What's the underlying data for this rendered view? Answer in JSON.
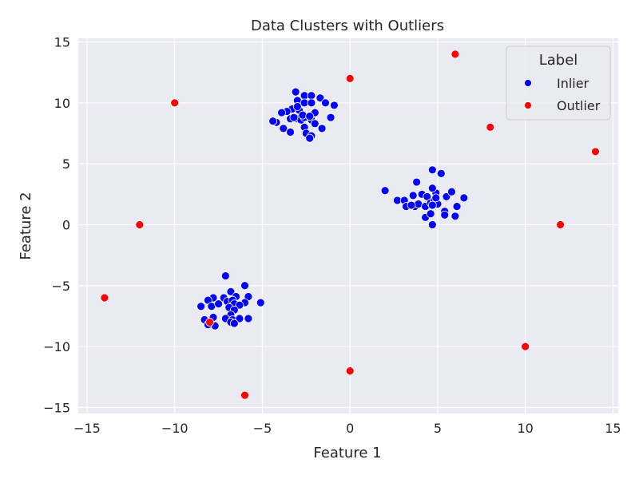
{
  "chart_data": {
    "type": "scatter",
    "title": "Data Clusters with Outliers",
    "xlabel": "Feature 1",
    "ylabel": "Feature 2",
    "xlim": [
      -15.5,
      15.3
    ],
    "ylim": [
      -15.5,
      15.3
    ],
    "x_ticks": [
      -15,
      -10,
      -5,
      0,
      5,
      10,
      15
    ],
    "y_ticks": [
      -15,
      -10,
      -5,
      0,
      5,
      10,
      15
    ],
    "grid": true,
    "legend": {
      "title": "Label",
      "placement": "top-right"
    },
    "series": [
      {
        "name": "Inlier",
        "color": "#0000ff",
        "points": [
          [
            -3.1,
            10.9
          ],
          [
            -2.6,
            10.6
          ],
          [
            -2.2,
            10.6
          ],
          [
            -1.7,
            10.4
          ],
          [
            -1.4,
            10.0
          ],
          [
            -0.9,
            9.8
          ],
          [
            -3.0,
            10.2
          ],
          [
            -2.6,
            10.0
          ],
          [
            -2.2,
            10.0
          ],
          [
            -3.3,
            9.5
          ],
          [
            -3.6,
            9.3
          ],
          [
            -3.9,
            9.2
          ],
          [
            -2.9,
            9.4
          ],
          [
            -2.0,
            9.2
          ],
          [
            -1.1,
            8.8
          ],
          [
            -4.2,
            8.4
          ],
          [
            -4.4,
            8.5
          ],
          [
            -3.4,
            8.7
          ],
          [
            -3.0,
            8.7
          ],
          [
            -2.8,
            8.6
          ],
          [
            -2.6,
            8.8
          ],
          [
            -2.2,
            8.6
          ],
          [
            -2.0,
            8.3
          ],
          [
            -3.8,
            7.9
          ],
          [
            -3.4,
            7.6
          ],
          [
            -2.6,
            8.0
          ],
          [
            -2.5,
            7.5
          ],
          [
            -2.2,
            7.3
          ],
          [
            -2.3,
            7.1
          ],
          [
            -1.6,
            7.9
          ],
          [
            -3.0,
            9.7
          ],
          [
            -2.7,
            9.0
          ],
          [
            -3.2,
            8.8
          ],
          [
            -2.3,
            8.9
          ],
          [
            2.0,
            2.8
          ],
          [
            2.7,
            2.0
          ],
          [
            3.1,
            2.0
          ],
          [
            3.2,
            1.5
          ],
          [
            3.6,
            2.4
          ],
          [
            3.8,
            3.5
          ],
          [
            4.1,
            2.5
          ],
          [
            4.4,
            2.3
          ],
          [
            4.7,
            4.5
          ],
          [
            5.2,
            4.2
          ],
          [
            5.5,
            2.3
          ],
          [
            5.8,
            2.7
          ],
          [
            6.5,
            2.2
          ],
          [
            3.7,
            1.5
          ],
          [
            3.9,
            1.7
          ],
          [
            4.3,
            1.5
          ],
          [
            4.6,
            1.8
          ],
          [
            4.8,
            2.0
          ],
          [
            5.0,
            1.7
          ],
          [
            5.4,
            1.1
          ],
          [
            6.1,
            1.5
          ],
          [
            4.3,
            0.6
          ],
          [
            4.7,
            0.0
          ],
          [
            5.4,
            0.8
          ],
          [
            6.0,
            0.7
          ],
          [
            4.9,
            2.6
          ],
          [
            4.7,
            3.0
          ],
          [
            3.5,
            1.6
          ],
          [
            4.9,
            2.2
          ],
          [
            4.6,
            0.9
          ],
          [
            4.7,
            1.6
          ],
          [
            -7.1,
            -4.2
          ],
          [
            -6.0,
            -5.0
          ],
          [
            -6.8,
            -5.5
          ],
          [
            -6.5,
            -5.9
          ],
          [
            -5.8,
            -5.9
          ],
          [
            -5.1,
            -6.4
          ],
          [
            -6.0,
            -6.4
          ],
          [
            -7.2,
            -6.0
          ],
          [
            -7.8,
            -6.0
          ],
          [
            -8.1,
            -6.2
          ],
          [
            -8.5,
            -6.7
          ],
          [
            -7.9,
            -6.7
          ],
          [
            -7.5,
            -6.5
          ],
          [
            -7.0,
            -6.3
          ],
          [
            -6.7,
            -6.2
          ],
          [
            -6.6,
            -6.5
          ],
          [
            -6.3,
            -6.6
          ],
          [
            -6.9,
            -6.8
          ],
          [
            -6.6,
            -7.0
          ],
          [
            -6.8,
            -7.4
          ],
          [
            -7.1,
            -7.7
          ],
          [
            -6.7,
            -7.8
          ],
          [
            -6.3,
            -7.7
          ],
          [
            -5.8,
            -7.7
          ],
          [
            -8.3,
            -7.8
          ],
          [
            -7.8,
            -7.6
          ],
          [
            -7.7,
            -8.3
          ],
          [
            -8.1,
            -8.2
          ],
          [
            -6.8,
            -8.0
          ],
          [
            -6.6,
            -8.1
          ]
        ]
      },
      {
        "name": "Outlier",
        "color": "#ff0000",
        "points": [
          [
            -10,
            10
          ],
          [
            0,
            12
          ],
          [
            6,
            14
          ],
          [
            8,
            8
          ],
          [
            14,
            6
          ],
          [
            -12,
            0
          ],
          [
            12,
            0
          ],
          [
            -14,
            -6
          ],
          [
            -8,
            -8
          ],
          [
            10,
            -10
          ],
          [
            0,
            -12
          ],
          [
            -6,
            -14
          ]
        ]
      }
    ]
  }
}
